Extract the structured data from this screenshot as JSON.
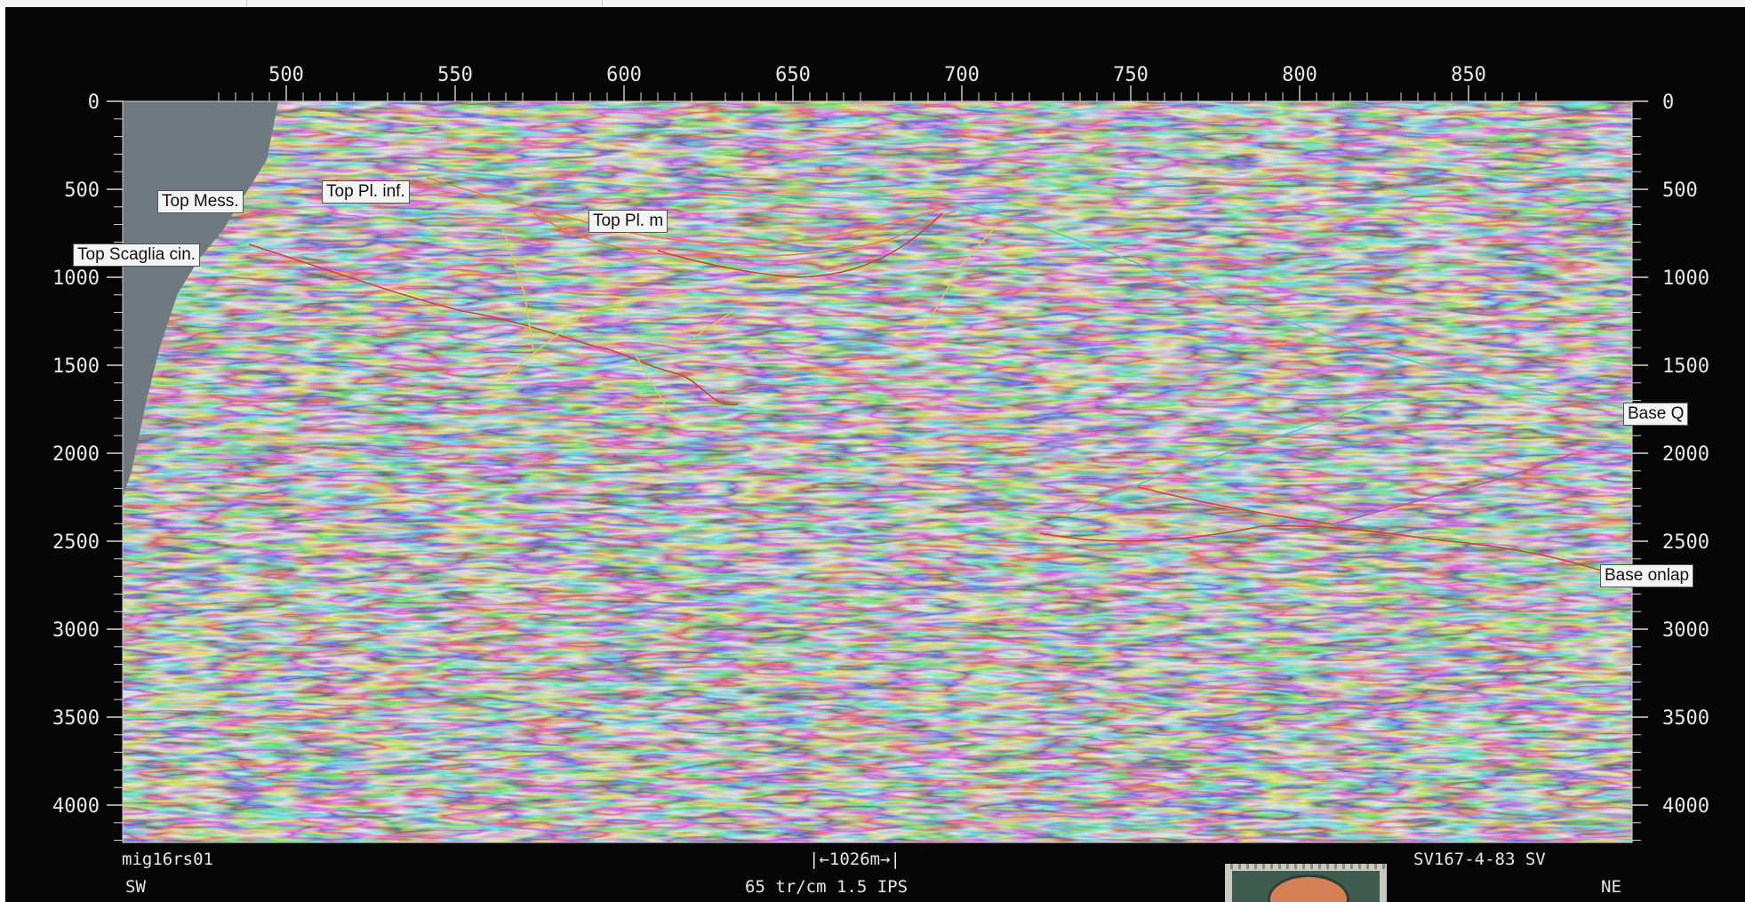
{
  "top_axis": {
    "ticks": [
      "500",
      "550",
      "600",
      "650",
      "700",
      "750",
      "800",
      "850"
    ],
    "values": [
      500,
      550,
      600,
      650,
      700,
      750,
      800,
      850
    ]
  },
  "left_axis": {
    "ticks": [
      "0",
      "500",
      "1000",
      "1500",
      "2000",
      "2500",
      "3000",
      "3500",
      "4000"
    ],
    "values": [
      0,
      500,
      1000,
      1500,
      2000,
      2500,
      3000,
      3500,
      4000
    ]
  },
  "right_axis": {
    "ticks": [
      "0",
      "500",
      "1000",
      "1500",
      "2000",
      "2500",
      "3000",
      "3500",
      "4000"
    ],
    "values": [
      0,
      500,
      1000,
      1500,
      2000,
      2500,
      3000,
      3500,
      4000
    ]
  },
  "horizons": {
    "top_mess": "Top Mess.",
    "top_pl_inf": "Top Pl. inf.",
    "top_pl_m": "Top Pl. m",
    "top_scaglia": "Top Scaglia cin.",
    "base_q": "Base Q",
    "base_onlap": "Base onlap"
  },
  "footer": {
    "line_id": "mig16rs01",
    "left_dir": "SW",
    "scale_bar": "|←1026m→|",
    "scale_info": "65  tr/cm 1.5  IPS",
    "survey": "SV167-4-83  SV",
    "right_dir": "NE"
  },
  "colors": {
    "horizon_red": "#d8402e",
    "horizon_orange": "#e0843a",
    "horizon_cyan": "#4fc7c4",
    "horizon_yellow": "#d9cf4a",
    "horizon_magenta": "#b05ab8"
  }
}
